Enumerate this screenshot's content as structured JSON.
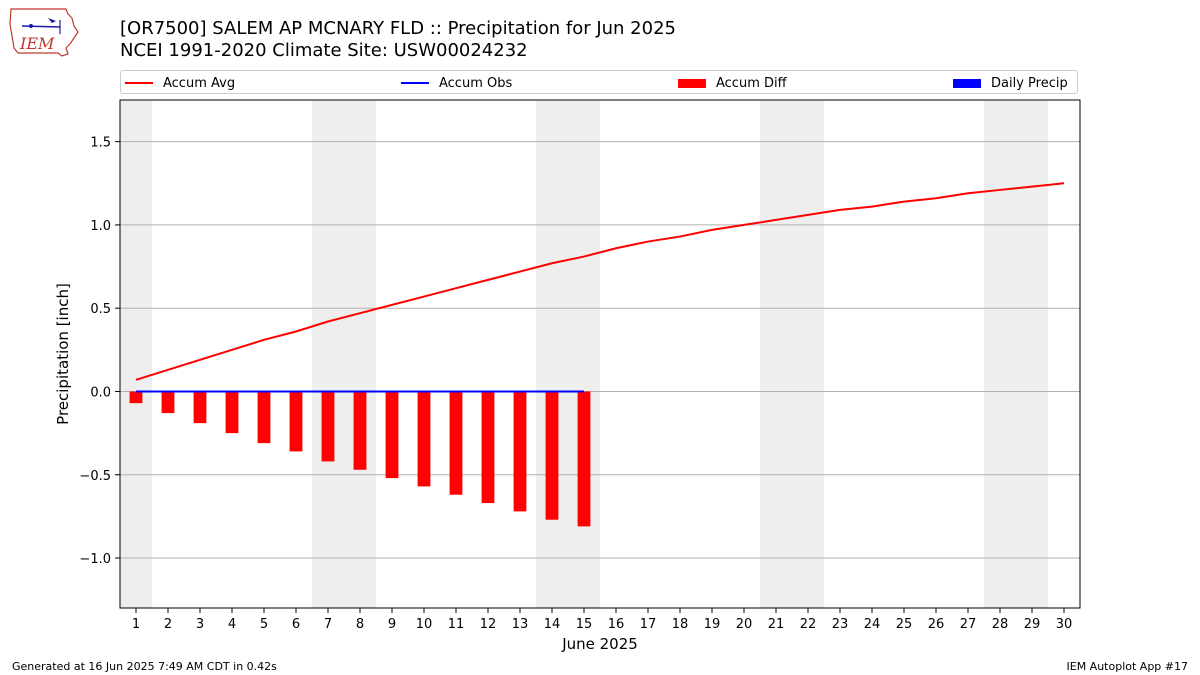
{
  "header": {
    "title_line1": "[OR7500] SALEM AP MCNARY FLD :: Precipitation for Jun 2025",
    "title_line2": "NCEI 1991-2020 Climate Site: USW00024232",
    "logo_text": "IEM"
  },
  "footer": {
    "generated": "Generated at 16 Jun 2025 7:49 AM CDT in 0.42s",
    "app": "IEM Autoplot App #17"
  },
  "legend": [
    {
      "label": "Accum Avg",
      "kind": "line",
      "color": "#ff0000"
    },
    {
      "label": "Accum Obs",
      "kind": "line",
      "color": "#0000ff"
    },
    {
      "label": "Accum Diff",
      "kind": "box",
      "color": "#ff0000"
    },
    {
      "label": "Daily Precip",
      "kind": "box",
      "color": "#0000ff"
    }
  ],
  "chart_data": {
    "type": "line",
    "xlabel": "June 2025",
    "ylabel": "Precipitation [inch]",
    "xlim": [
      0.5,
      30.5
    ],
    "ylim": [
      -1.3,
      1.75
    ],
    "yticks": [
      -1.0,
      -0.5,
      0.0,
      0.5,
      1.0,
      1.5
    ],
    "ytick_labels": [
      "−1.0",
      "−0.5",
      "0.0",
      "0.5",
      "1.0",
      "1.5"
    ],
    "x": [
      1,
      2,
      3,
      4,
      5,
      6,
      7,
      8,
      9,
      10,
      11,
      12,
      13,
      14,
      15,
      16,
      17,
      18,
      19,
      20,
      21,
      22,
      23,
      24,
      25,
      26,
      27,
      28,
      29,
      30
    ],
    "grid": "horizontal",
    "weekend_shading": [
      [
        0.5,
        1.5
      ],
      [
        6.5,
        8.5
      ],
      [
        13.5,
        15.5
      ],
      [
        20.5,
        22.5
      ],
      [
        27.5,
        29.5
      ]
    ],
    "shade_color": "#eeeeee",
    "series": [
      {
        "name": "Accum Avg",
        "kind": "line",
        "color": "#ff0000",
        "x": [
          1,
          2,
          3,
          4,
          5,
          6,
          7,
          8,
          9,
          10,
          11,
          12,
          13,
          14,
          15,
          16,
          17,
          18,
          19,
          20,
          21,
          22,
          23,
          24,
          25,
          26,
          27,
          28,
          29,
          30
        ],
        "values": [
          0.07,
          0.13,
          0.19,
          0.25,
          0.31,
          0.36,
          0.42,
          0.47,
          0.52,
          0.57,
          0.62,
          0.67,
          0.72,
          0.77,
          0.81,
          0.86,
          0.9,
          0.93,
          0.97,
          1.0,
          1.03,
          1.06,
          1.09,
          1.11,
          1.14,
          1.16,
          1.19,
          1.21,
          1.23,
          1.25
        ]
      },
      {
        "name": "Accum Obs",
        "kind": "line",
        "color": "#0000ff",
        "x": [
          1,
          2,
          3,
          4,
          5,
          6,
          7,
          8,
          9,
          10,
          11,
          12,
          13,
          14,
          15
        ],
        "values": [
          0,
          0,
          0,
          0,
          0,
          0,
          0,
          0,
          0,
          0,
          0,
          0,
          0,
          0,
          0
        ]
      },
      {
        "name": "Accum Diff",
        "kind": "bar",
        "color": "#ff0000",
        "x": [
          1,
          2,
          3,
          4,
          5,
          6,
          7,
          8,
          9,
          10,
          11,
          12,
          13,
          14,
          15
        ],
        "values": [
          -0.07,
          -0.13,
          -0.19,
          -0.25,
          -0.31,
          -0.36,
          -0.42,
          -0.47,
          -0.52,
          -0.57,
          -0.62,
          -0.67,
          -0.72,
          -0.77,
          -0.81
        ]
      },
      {
        "name": "Daily Precip",
        "kind": "bar",
        "color": "#0000ff",
        "x": [
          1,
          2,
          3,
          4,
          5,
          6,
          7,
          8,
          9,
          10,
          11,
          12,
          13,
          14,
          15
        ],
        "values": [
          0,
          0,
          0,
          0,
          0,
          0,
          0,
          0,
          0,
          0,
          0,
          0,
          0,
          0,
          0
        ]
      }
    ]
  }
}
